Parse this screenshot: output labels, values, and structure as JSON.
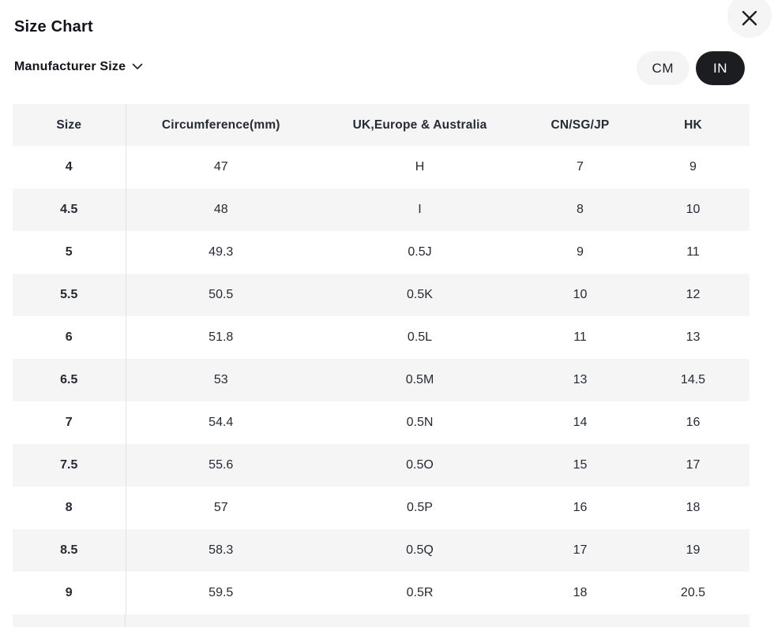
{
  "modal": {
    "title": "Size Chart"
  },
  "controls": {
    "size_selector": {
      "label": "Manufacturer Size",
      "icon": "chevron-down-icon"
    },
    "unit_toggle": {
      "options": [
        {
          "label": "CM",
          "selected": false
        },
        {
          "label": "IN",
          "selected": true
        }
      ]
    },
    "close": {
      "icon": "close-icon"
    }
  },
  "colors": {
    "selected_pill_bg": "#1c1d21",
    "selected_pill_text": "#ffffff",
    "pill_bg": "#f4f4f5",
    "row_alt_bg": "#f5f5f6",
    "table_text": "#262a34",
    "divider": "#e3e3e5"
  },
  "table": {
    "headers": [
      "Size",
      "Circumference(mm)",
      "UK,Europe & Australia",
      "CN/SG/JP",
      "HK"
    ],
    "rows": [
      [
        "4",
        "47",
        "H",
        "7",
        "9"
      ],
      [
        "4.5",
        "48",
        "I",
        "8",
        "10"
      ],
      [
        "5",
        "49.3",
        "0.5J",
        "9",
        "11"
      ],
      [
        "5.5",
        "50.5",
        "0.5K",
        "10",
        "12"
      ],
      [
        "6",
        "51.8",
        "0.5L",
        "11",
        "13"
      ],
      [
        "6.5",
        "53",
        "0.5M",
        "13",
        "14.5"
      ],
      [
        "7",
        "54.4",
        "0.5N",
        "14",
        "16"
      ],
      [
        "7.5",
        "55.6",
        "0.5O",
        "15",
        "17"
      ],
      [
        "8",
        "57",
        "0.5P",
        "16",
        "18"
      ],
      [
        "8.5",
        "58.3",
        "0.5Q",
        "17",
        "19"
      ],
      [
        "9",
        "59.5",
        "0.5R",
        "18",
        "20.5"
      ]
    ]
  }
}
